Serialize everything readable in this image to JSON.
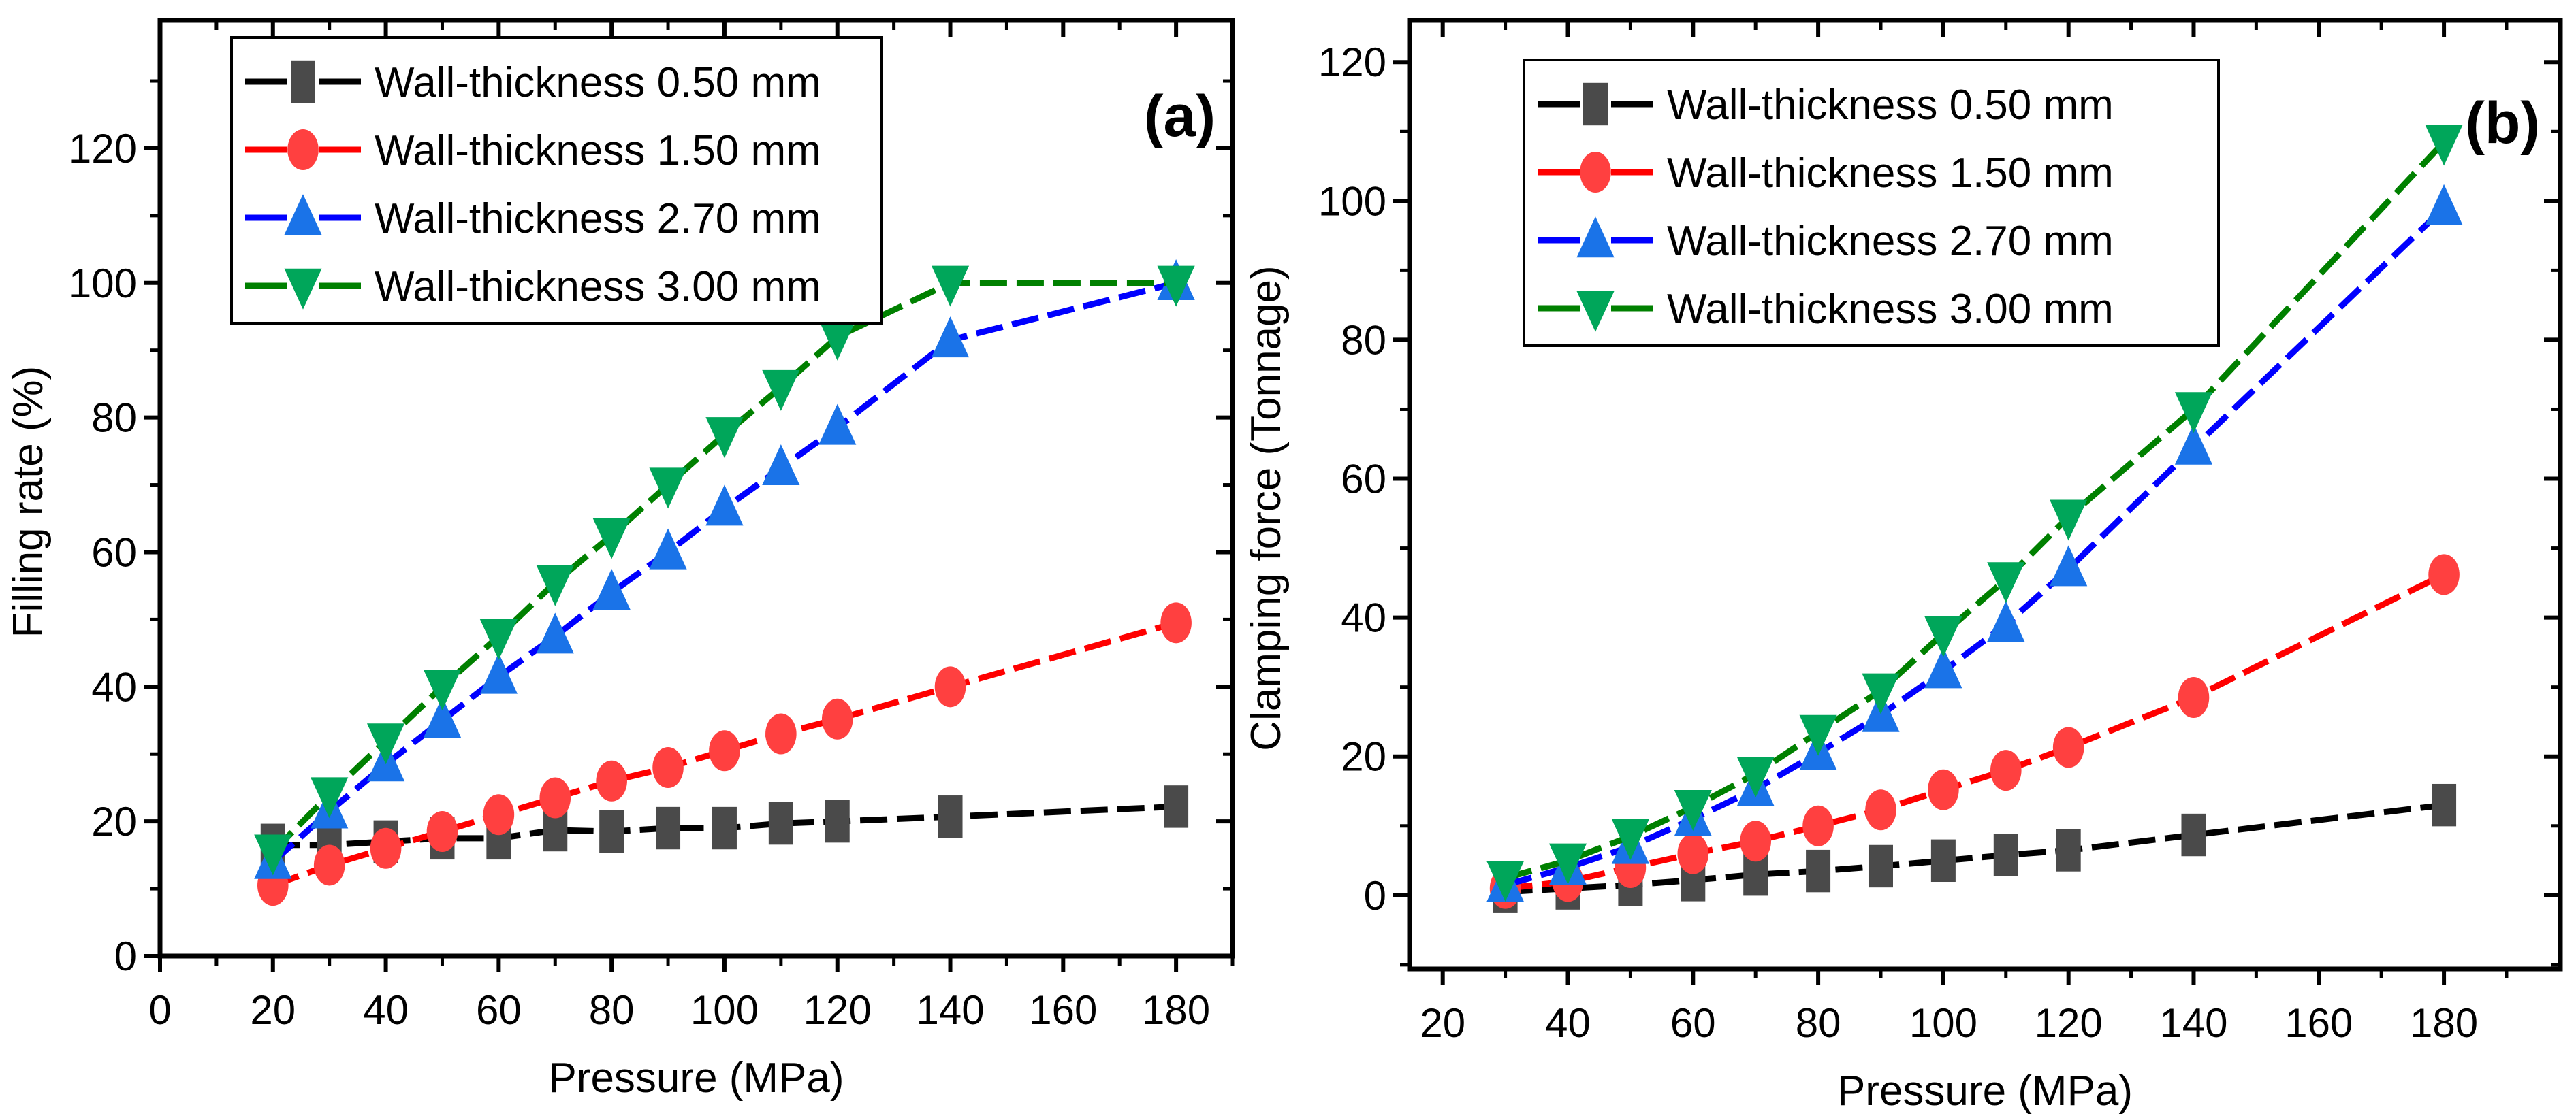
{
  "chart_data": [
    {
      "type": "line",
      "panel_label": "(a)",
      "title": "",
      "xlabel": "Pressure (MPa)",
      "ylabel": "Filling rate (%)",
      "xlim": [
        0,
        190
      ],
      "ylim": [
        0,
        139
      ],
      "xticks": [
        0,
        20,
        40,
        60,
        80,
        100,
        120,
        140,
        160,
        180
      ],
      "yticks": [
        0,
        20,
        40,
        60,
        80,
        100,
        120
      ],
      "grid": false,
      "legend_position": "top-left",
      "series": [
        {
          "name": "Wall-thickness 0.50 mm",
          "color": "#000000",
          "marker": "square",
          "marker_color": "#4a4a4a",
          "x": [
            20,
            30,
            40,
            50,
            60,
            70,
            80,
            90,
            100,
            110,
            120,
            140,
            180
          ],
          "y": [
            16.5,
            16.5,
            17,
            17.5,
            17.5,
            18.7,
            18.5,
            19,
            19,
            19.7,
            20,
            20.7,
            22.2
          ]
        },
        {
          "name": "Wall-thickness 1.50 mm",
          "color": "#ff0000",
          "marker": "circle",
          "marker_color": "#ff4040",
          "x": [
            20,
            30,
            40,
            50,
            60,
            70,
            80,
            90,
            100,
            110,
            120,
            140,
            180
          ],
          "y": [
            10.5,
            13.5,
            16,
            18.5,
            21,
            23.5,
            26,
            28,
            30.5,
            33,
            35.2,
            40,
            49.5
          ]
        },
        {
          "name": "Wall-thickness 2.70 mm",
          "color": "#0000ff",
          "marker": "triangle-up",
          "marker_color": "#1a73e8",
          "x": [
            20,
            30,
            40,
            50,
            60,
            70,
            80,
            90,
            100,
            110,
            120,
            140,
            180
          ],
          "y": [
            14,
            21.5,
            28.5,
            35,
            41.5,
            47.5,
            54,
            60,
            66.5,
            72.5,
            78.5,
            91.5,
            100
          ]
        },
        {
          "name": "Wall-thickness 3.00 mm",
          "color": "#008000",
          "marker": "triangle-down",
          "marker_color": "#00a65a",
          "x": [
            20,
            30,
            40,
            50,
            60,
            70,
            80,
            90,
            100,
            110,
            120,
            140,
            180
          ],
          "y": [
            15.5,
            24,
            32,
            40,
            47.5,
            55.5,
            62.5,
            70,
            77.5,
            84.5,
            92,
            100,
            100
          ]
        }
      ]
    },
    {
      "type": "line",
      "panel_label": "(b)",
      "title": "",
      "xlabel": "Pressure (MPa)",
      "ylabel": "Clamping force (Tonnage)",
      "xlim": [
        14.7,
        198.6
      ],
      "ylim": [
        -10.6,
        126
      ],
      "xticks": [
        20,
        40,
        60,
        80,
        100,
        120,
        140,
        160,
        180
      ],
      "yticks": [
        0,
        20,
        40,
        60,
        80,
        100,
        120
      ],
      "grid": false,
      "legend_position": "top-left",
      "series": [
        {
          "name": "Wall-thickness 0.50 mm",
          "color": "#000000",
          "marker": "square",
          "marker_color": "#4a4a4a",
          "x": [
            30,
            40,
            50,
            60,
            70,
            80,
            90,
            100,
            110,
            120,
            140,
            180
          ],
          "y": [
            0.5,
            1,
            1.5,
            2.2,
            3,
            3.5,
            4.2,
            5,
            5.8,
            6.5,
            8.7,
            13
          ]
        },
        {
          "name": "Wall-thickness 1.50 mm",
          "color": "#ff0000",
          "marker": "circle",
          "marker_color": "#ff4040",
          "x": [
            30,
            40,
            50,
            60,
            70,
            80,
            90,
            100,
            110,
            120,
            140,
            180
          ],
          "y": [
            1,
            2,
            4,
            6,
            7.8,
            10,
            12.3,
            15.2,
            18,
            21.3,
            28.5,
            46.2
          ]
        },
        {
          "name": "Wall-thickness 2.70 mm",
          "color": "#0000ff",
          "marker": "triangle-up",
          "marker_color": "#1a73e8",
          "x": [
            30,
            40,
            50,
            60,
            70,
            80,
            90,
            100,
            110,
            120,
            140,
            180
          ],
          "y": [
            1.5,
            4,
            7,
            11,
            15.3,
            20.5,
            26,
            32.3,
            39,
            47,
            64.5,
            99
          ]
        },
        {
          "name": "Wall-thickness 3.00 mm",
          "color": "#008000",
          "marker": "triangle-down",
          "marker_color": "#00a65a",
          "x": [
            30,
            40,
            50,
            60,
            70,
            80,
            90,
            100,
            110,
            120,
            140,
            180
          ],
          "y": [
            2.5,
            5,
            8.5,
            12.7,
            17.5,
            23.5,
            29.5,
            37.7,
            45.5,
            54.5,
            70,
            108.5
          ]
        }
      ]
    }
  ]
}
